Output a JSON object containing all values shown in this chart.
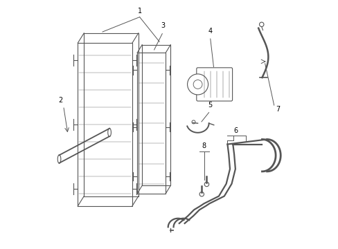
{
  "bg_color": "#ffffff",
  "line_color": "#555555",
  "label_color": "#000000",
  "fig_width": 4.89,
  "fig_height": 3.6,
  "dpi": 100,
  "label_fs": 7
}
